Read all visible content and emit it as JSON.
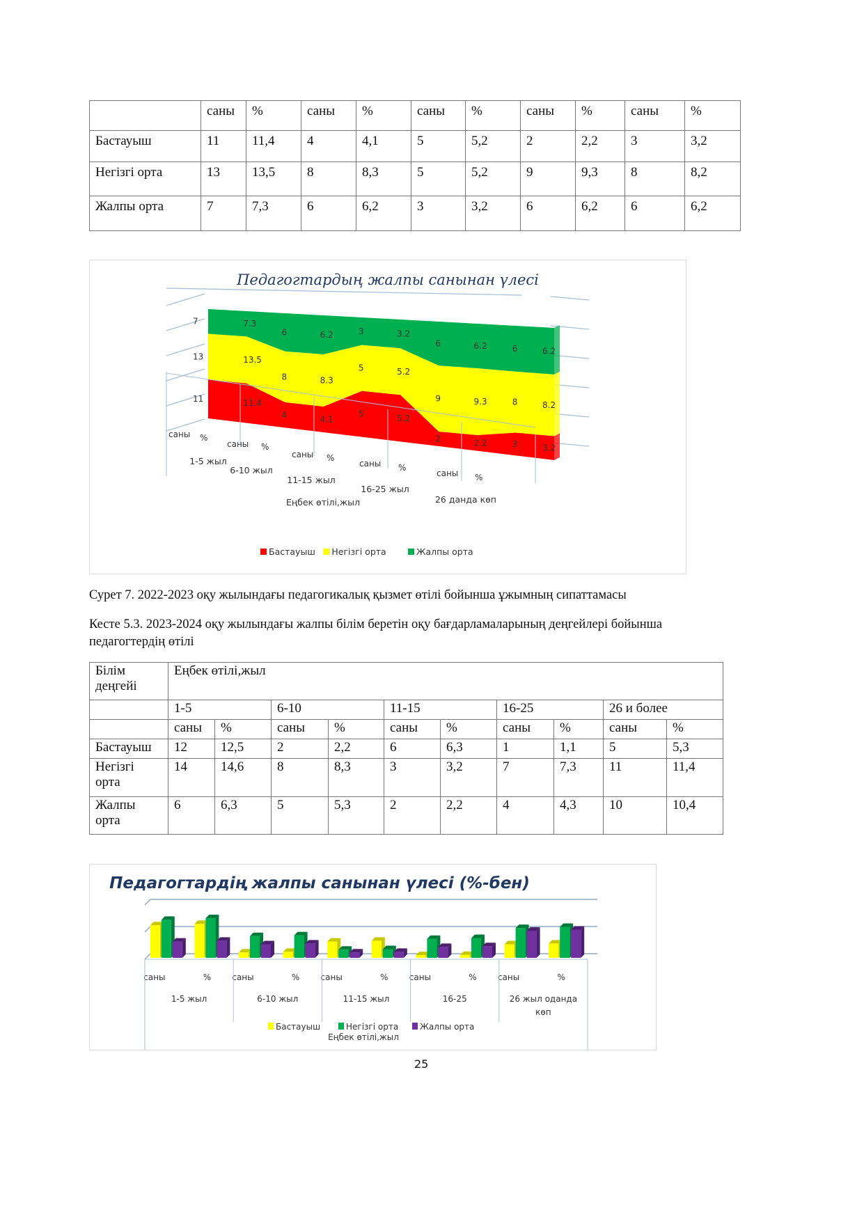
{
  "table1": {
    "header": [
      "",
      "саны",
      "%",
      "саны",
      "%",
      "саны",
      "%",
      "саны",
      "%",
      "саны",
      "%"
    ],
    "rows": [
      [
        "Бастауыш",
        "11",
        "11,4",
        "4",
        "4,1",
        "5",
        "5,2",
        "2",
        "2,2",
        "3",
        "3,2"
      ],
      [
        "Негізгі орта",
        "13",
        "13,5",
        "8",
        "8,3",
        "5",
        "5,2",
        "9",
        "9,3",
        "8",
        "8,2"
      ],
      [
        "Жалпы орта",
        "7",
        "7,3",
        "6",
        "6,2",
        "3",
        "3,2",
        "6",
        "6,2",
        "6",
        "6,2"
      ]
    ]
  },
  "figure7_caption": "Сурет 7. 2022-2023 оқу жылындағы педагогикалық қызмет өтілі бойынша  ұжымның сипаттамасы",
  "table2_caption_line1": "Кесте 5.3. 2023-2024 оқу жылындағы жалпы білім беретін оқу бағдарламаларының деңгейлері бойынша",
  "table2_caption_line2": "педагогтердің өтілі",
  "table2": {
    "corner": "Білім деңгейі",
    "span_header": "Еңбек өтілі,жыл",
    "groups": [
      "1-5",
      "6-10",
      "11-15",
      "16-25",
      "26 и более"
    ],
    "subheaders": [
      "саны",
      "%",
      "саны",
      "%",
      "саны",
      "%",
      "саны",
      "%",
      "саны",
      "%"
    ],
    "rows": [
      [
        "Бастауыш",
        "12",
        "12,5",
        "2",
        "2,2",
        "6",
        "6,3",
        "1",
        "1,1",
        "5",
        "5,3"
      ],
      [
        "Негізгі орта",
        "14",
        "14,6",
        "8",
        "8,3",
        "3",
        "3,2",
        "7",
        "7,3",
        "11",
        "11,4"
      ],
      [
        "Жалпы орта",
        "6",
        "6,3",
        "5",
        "5,3",
        "2",
        "2,2",
        "4",
        "4,3",
        "10",
        "10,4"
      ]
    ]
  },
  "page_number": "25",
  "chart_data": [
    {
      "type": "area",
      "stacked": "100%",
      "view": "3d",
      "title": "Педагогтардың жалпы санынан үлесі",
      "xlabel": "Еңбек өтілі,жыл",
      "categories": [
        "саны",
        "%",
        "саны",
        "%",
        "саны",
        "%",
        "саны",
        "%",
        "саны",
        "%"
      ],
      "category_groups": [
        "1-5 жыл",
        "6-10 жыл",
        "11-15 жыл",
        "16-25 жыл",
        "26  данда көп"
      ],
      "series": [
        {
          "name": "Бастауыш",
          "color": "#ff0000",
          "values": [
            11,
            11.4,
            4,
            4.1,
            5,
            5.2,
            2,
            2.2,
            3,
            3.2
          ]
        },
        {
          "name": "Негізгі орта",
          "color": "#ffff00",
          "values": [
            13,
            13.5,
            8,
            8.3,
            5,
            5.2,
            9,
            9.3,
            8,
            8.2
          ]
        },
        {
          "name": "Жалпы орта",
          "color": "#00b050",
          "values": [
            7,
            7.3,
            6,
            6.2,
            3,
            3.2,
            6,
            6.2,
            6,
            6.2
          ]
        }
      ],
      "data_labels": [
        "11",
        "11.4",
        "4",
        "4.1",
        "5",
        "5.2",
        "2",
        "2.2",
        "3",
        "3.2",
        "13",
        "13.5",
        "8",
        "8.3",
        "5",
        "5.2",
        "9",
        "9.3",
        "8",
        "8.2",
        "7",
        "7.3",
        "6",
        "6.2",
        "3",
        "3.2",
        "6",
        "6.2",
        "6",
        "6.2"
      ],
      "legend": "bottom",
      "grid": true
    },
    {
      "type": "bar",
      "view": "3d",
      "title": "Педагогтардің жалпы санынан үлесі (%-бен)",
      "xlabel": "Еңбек өтілі,жыл",
      "categories": [
        "саны",
        "%",
        "саны",
        "%",
        "саны",
        "%",
        "саны",
        "%",
        "саны",
        "%"
      ],
      "category_groups": [
        "1-5 жыл",
        "6-10 жыл",
        "11-15 жыл",
        "16-25",
        "26 жыл оданда көп"
      ],
      "series": [
        {
          "name": "Бастауыш",
          "color": "#ffff00",
          "values": [
            12,
            12.5,
            2,
            2.2,
            6,
            6.3,
            1,
            1.1,
            5,
            5.3
          ]
        },
        {
          "name": "Негізгі орта",
          "color": "#00b050",
          "values": [
            14,
            14.6,
            8,
            8.3,
            3,
            3.2,
            7,
            7.3,
            11,
            11.4
          ]
        },
        {
          "name": "Жалпы орта",
          "color": "#7030a0",
          "values": [
            6,
            6.3,
            5,
            5.3,
            2,
            2.2,
            4,
            4.3,
            10,
            10.4
          ]
        }
      ],
      "ylim": [
        0,
        20
      ],
      "legend": "bottom",
      "grid": true
    }
  ]
}
